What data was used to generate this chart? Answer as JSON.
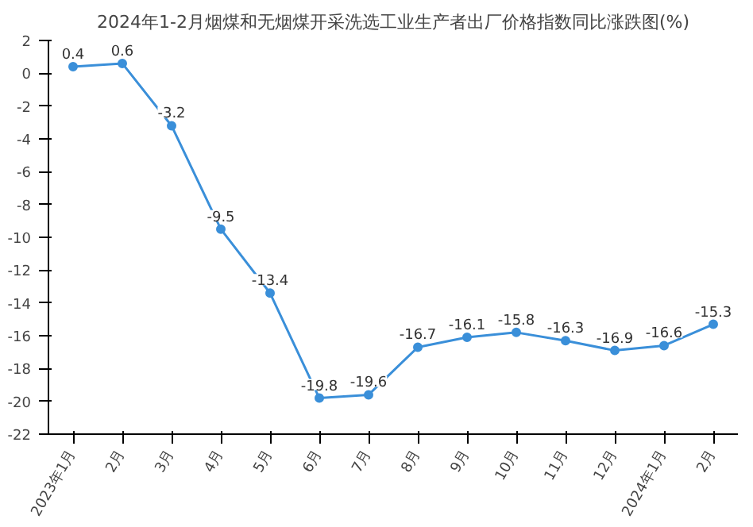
{
  "chart_data": {
    "type": "line",
    "title": "2024年1-2月烟煤和无烟煤开采洗选工业生产者出厂价格指数同比涨跌图(%)",
    "categories": [
      "2023年1月",
      "2月",
      "3月",
      "4月",
      "5月",
      "6月",
      "7月",
      "8月",
      "9月",
      "10月",
      "11月",
      "12月",
      "2024年1月",
      "2月"
    ],
    "series": [
      {
        "color": "#3a8fd9",
        "values": [
          0.4,
          0.6,
          -3.2,
          -9.5,
          -13.4,
          -19.8,
          -19.6,
          -16.7,
          -16.1,
          -15.8,
          -16.3,
          -16.9,
          -16.6,
          -15.3
        ]
      }
    ],
    "ylim": [
      -22,
      2
    ],
    "yticks": [
      -22,
      -20,
      -18,
      -16,
      -14,
      -12,
      -10,
      -8,
      -6,
      -4,
      -2,
      0,
      2
    ],
    "data_labels": true,
    "marker": "circle",
    "line_style": "solid",
    "grid": false
  }
}
